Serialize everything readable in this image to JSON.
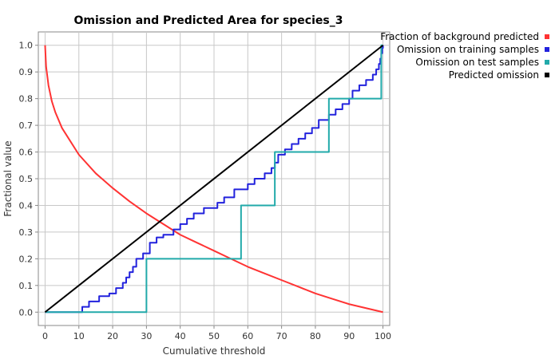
{
  "chart_data": {
    "type": "line",
    "title": "Omission and Predicted Area for species_3",
    "xlabel": "Cumulative threshold",
    "ylabel": "Fractional value",
    "xlim": [
      -2,
      102
    ],
    "ylim": [
      -0.05,
      1.05
    ],
    "xticks": [
      0,
      10,
      20,
      30,
      40,
      50,
      60,
      70,
      80,
      90,
      100
    ],
    "yticks": [
      0.0,
      0.1,
      0.2,
      0.3,
      0.4,
      0.5,
      0.6,
      0.7,
      0.8,
      0.9,
      1.0
    ],
    "ytick_labels": [
      "0.0",
      "0.1",
      "0.2",
      "0.3",
      "0.4",
      "0.5",
      "0.6",
      "0.7",
      "0.8",
      "0.9",
      "1.0"
    ],
    "grid": true,
    "legend_position": "outside-top-right",
    "series": [
      {
        "name": "Fraction of background predicted",
        "color": "#ff3333",
        "kind": "line",
        "x": [
          0,
          0.3,
          1,
          2,
          3,
          5,
          7,
          10,
          15,
          20,
          25,
          30,
          35,
          40,
          45,
          50,
          55,
          60,
          65,
          70,
          75,
          80,
          85,
          90,
          95,
          100
        ],
        "y": [
          1.0,
          0.92,
          0.85,
          0.79,
          0.75,
          0.69,
          0.65,
          0.59,
          0.52,
          0.465,
          0.415,
          0.37,
          0.33,
          0.29,
          0.26,
          0.23,
          0.2,
          0.17,
          0.145,
          0.12,
          0.095,
          0.07,
          0.05,
          0.03,
          0.015,
          0.0
        ]
      },
      {
        "name": "Omission on training samples",
        "color": "#2222dd",
        "kind": "step",
        "x": [
          0,
          11,
          13,
          16,
          19,
          21,
          23,
          24,
          25,
          26,
          27,
          29,
          31,
          33,
          35,
          38,
          40,
          42,
          44,
          47,
          51,
          53,
          56,
          60,
          62,
          65,
          67,
          68,
          69,
          71,
          73,
          75,
          77,
          79,
          81,
          84,
          86,
          88,
          90,
          91,
          93,
          95,
          97,
          98,
          98.8,
          99.2,
          99.5,
          99.8,
          100
        ],
        "y": [
          0.0,
          0.02,
          0.04,
          0.06,
          0.07,
          0.09,
          0.11,
          0.13,
          0.15,
          0.17,
          0.2,
          0.22,
          0.26,
          0.28,
          0.29,
          0.31,
          0.33,
          0.35,
          0.37,
          0.39,
          0.41,
          0.43,
          0.46,
          0.48,
          0.5,
          0.52,
          0.54,
          0.56,
          0.59,
          0.61,
          0.63,
          0.65,
          0.67,
          0.69,
          0.72,
          0.74,
          0.76,
          0.78,
          0.8,
          0.83,
          0.85,
          0.87,
          0.89,
          0.91,
          0.93,
          0.95,
          0.97,
          0.99,
          1.0
        ]
      },
      {
        "name": "Omission on test samples",
        "color": "#22aaaa",
        "kind": "step",
        "x": [
          0,
          30,
          58,
          68,
          84,
          99.5,
          100
        ],
        "y": [
          0.0,
          0.2,
          0.4,
          0.6,
          0.8,
          1.0,
          1.0
        ]
      },
      {
        "name": "Predicted omission",
        "color": "#000000",
        "kind": "line",
        "x": [
          0,
          100
        ],
        "y": [
          0.0,
          1.0
        ]
      }
    ]
  }
}
